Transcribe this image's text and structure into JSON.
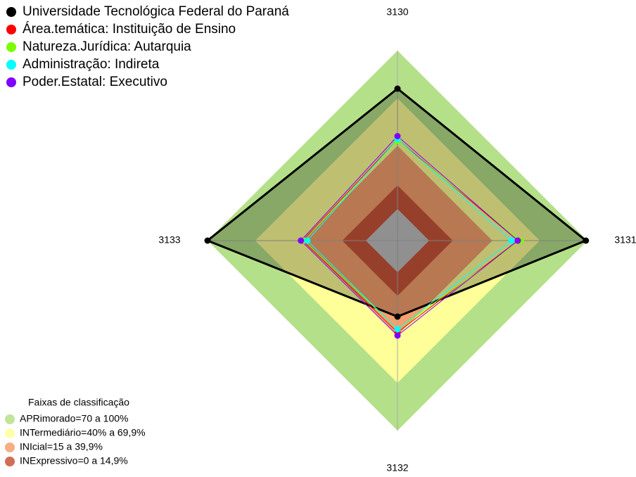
{
  "chart_data": {
    "type": "radar",
    "categories": [
      "3130",
      "3131",
      "3132",
      "3133"
    ],
    "ylim": [
      -20,
      100
    ],
    "series": [
      {
        "name": "Universidade Tecnológica Federal do Paraná",
        "color": "#000000",
        "values": [
          76,
          99,
          28,
          100
        ]
      },
      {
        "name": "Área.temática: Instituição de Ensino",
        "color": "#ff0000",
        "values": [
          44,
          56,
          38,
          40
        ]
      },
      {
        "name": "Natureza.Jurídica: Autarquia",
        "color": "#7cfc00",
        "values": [
          43,
          58,
          36,
          39
        ]
      },
      {
        "name": "Administração: Indireta",
        "color": "#00ffff",
        "values": [
          44,
          52,
          36,
          37
        ]
      },
      {
        "name": "Poder.Estatal: Executivo",
        "color": "#8000ff",
        "values": [
          46,
          56,
          40,
          41
        ]
      }
    ],
    "bands_title": "Faixas de classificação",
    "bands": [
      {
        "label": "APRimorado=70 a 100%",
        "from": 70,
        "to": 100,
        "color": "#b5e08a"
      },
      {
        "label": "INTermediário=40% a 69,9%",
        "from": 40,
        "to": 69.9,
        "color": "#ffff99"
      },
      {
        "label": "INIcial=15 a 39,9%",
        "from": 15,
        "to": 39.9,
        "color": "#f4a06e"
      },
      {
        "label": "INExpressivo=0 a 14,9%",
        "from": 0,
        "to": 14.9,
        "color": "#c8553a"
      }
    ]
  }
}
